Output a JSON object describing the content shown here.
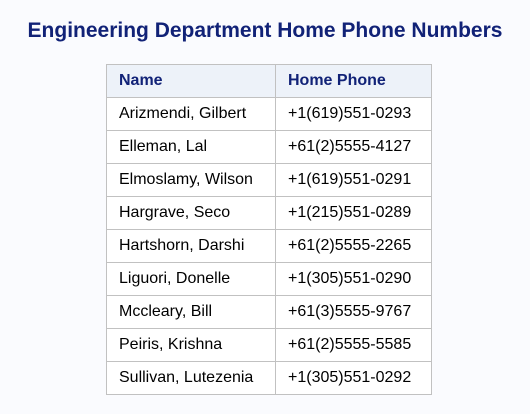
{
  "title": "Engineering Department Home Phone Numbers",
  "table": {
    "columns": [
      "Name",
      "Home Phone"
    ],
    "rows": [
      {
        "name": "Arizmendi, Gilbert",
        "phone": "+1(619)551-0293"
      },
      {
        "name": "Elleman, Lal",
        "phone": "+61(2)5555-4127"
      },
      {
        "name": "Elmoslamy, Wilson",
        "phone": "+1(619)551-0291"
      },
      {
        "name": "Hargrave, Seco",
        "phone": "+1(215)551-0289"
      },
      {
        "name": "Hartshorn, Darshi",
        "phone": "+61(2)5555-2265"
      },
      {
        "name": "Liguori, Donelle",
        "phone": "+1(305)551-0290"
      },
      {
        "name": "Mccleary, Bill",
        "phone": "+61(3)5555-9767"
      },
      {
        "name": "Peiris, Krishna",
        "phone": "+61(2)5555-5585"
      },
      {
        "name": "Sullivan, Lutezenia",
        "phone": "+1(305)551-0292"
      }
    ]
  },
  "colors": {
    "title": "#112277",
    "header_background": "#edf2f9",
    "border": "#c1c1c1",
    "page_background": "#fafbfe"
  }
}
